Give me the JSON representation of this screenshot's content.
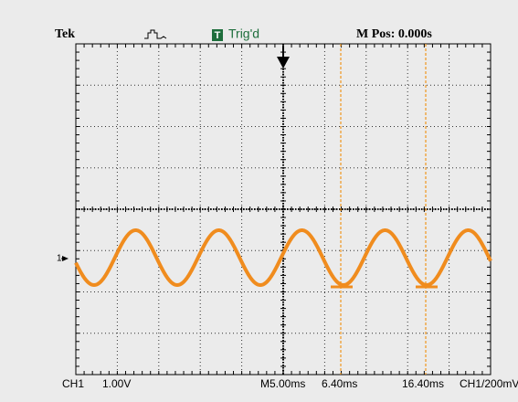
{
  "header": {
    "brand": "Tek",
    "trigger_icon": "T",
    "trigger_status": "Trig'd",
    "position": "M Pos: 0.000s"
  },
  "channel_marker": "1",
  "footer": {
    "channel": "CH1",
    "volts_per_div": "1.00V",
    "timebase": "M5.00ms",
    "cursor1": "6.40ms",
    "cursor2": "16.40ms",
    "trigger_source": "CH1/200mV"
  }
}
